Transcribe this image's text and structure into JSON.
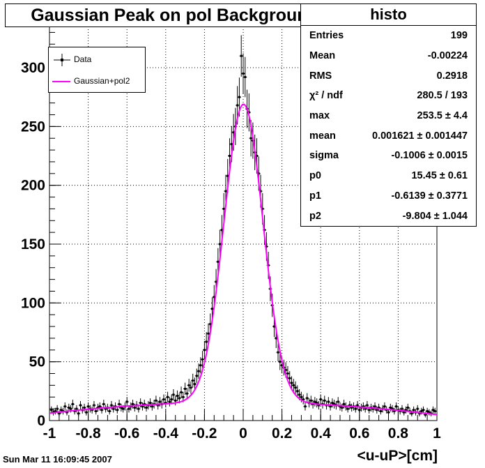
{
  "title": "Gaussian Peak on pol Background",
  "stats": {
    "name": "histo",
    "rows": [
      {
        "label": "Entries",
        "value": "199"
      },
      {
        "label": "Mean",
        "value": "-0.00224"
      },
      {
        "label": "RMS",
        "value": "0.2918"
      },
      {
        "label": "χ² / ndf",
        "value": "280.5 / 193"
      },
      {
        "label": "max",
        "value": "253.5 ± 4.4"
      },
      {
        "label": "mean",
        "value": "0.001621 ± 0.001447"
      },
      {
        "label": "sigma",
        "value": "-0.1006 ± 0.0015"
      },
      {
        "label": "p0",
        "value": "15.45 ± 0.61"
      },
      {
        "label": "p1",
        "value": "-0.6139 ± 0.3771"
      },
      {
        "label": "p2",
        "value": "-9.804 ± 1.044"
      }
    ]
  },
  "legend": {
    "entries": [
      {
        "label": "Data",
        "style": "markers"
      },
      {
        "label": "Gaussian+pol2",
        "style": "line"
      }
    ]
  },
  "timestamp": "Sun Mar 11 16:09:45 2007",
  "xlabel": "<u-uP>[cm]",
  "colors": {
    "fit": "#ff00ff",
    "data": "#000000",
    "grid": "#000000"
  },
  "chart_data": {
    "type": "scatter",
    "title": "Gaussian Peak on pol Background",
    "xlabel": "<u-uP>[cm]",
    "ylabel": "",
    "xlim": [
      -1,
      1
    ],
    "ylim": [
      0,
      335
    ],
    "grid": true,
    "legend_position": "top-left",
    "x_ticks": [
      "-1",
      "-0.8",
      "-0.6",
      "-0.4",
      "-0.2",
      "0",
      "0.2",
      "0.4",
      "0.6",
      "0.8",
      "1"
    ],
    "y_ticks": [
      "0",
      "50",
      "100",
      "150",
      "200",
      "250",
      "300"
    ],
    "fit_function": {
      "name": "Gaussian+pol2",
      "max": 253.5,
      "mean": 0.001621,
      "sigma": -0.1006,
      "p0": 15.45,
      "p1": -0.6139,
      "p2": -9.804
    },
    "series": [
      {
        "name": "Data",
        "points": [
          [
            -0.99,
            9
          ],
          [
            -0.98,
            7
          ],
          [
            -0.97,
            8
          ],
          [
            -0.96,
            10
          ],
          [
            -0.95,
            6
          ],
          [
            -0.94,
            9
          ],
          [
            -0.93,
            8
          ],
          [
            -0.92,
            12
          ],
          [
            -0.91,
            7
          ],
          [
            -0.9,
            11
          ],
          [
            -0.89,
            10
          ],
          [
            -0.88,
            14
          ],
          [
            -0.87,
            8
          ],
          [
            -0.86,
            10
          ],
          [
            -0.85,
            6
          ],
          [
            -0.84,
            13
          ],
          [
            -0.83,
            9
          ],
          [
            -0.82,
            11
          ],
          [
            -0.81,
            7
          ],
          [
            -0.8,
            12
          ],
          [
            -0.79,
            10
          ],
          [
            -0.78,
            9
          ],
          [
            -0.77,
            13
          ],
          [
            -0.76,
            8
          ],
          [
            -0.75,
            11
          ],
          [
            -0.74,
            12
          ],
          [
            -0.73,
            9
          ],
          [
            -0.72,
            14
          ],
          [
            -0.71,
            10
          ],
          [
            -0.7,
            11
          ],
          [
            -0.69,
            8
          ],
          [
            -0.68,
            13
          ],
          [
            -0.67,
            10
          ],
          [
            -0.66,
            12
          ],
          [
            -0.65,
            9
          ],
          [
            -0.64,
            14
          ],
          [
            -0.63,
            11
          ],
          [
            -0.62,
            10
          ],
          [
            -0.61,
            12
          ],
          [
            -0.6,
            16
          ],
          [
            -0.59,
            10
          ],
          [
            -0.58,
            12
          ],
          [
            -0.57,
            14
          ],
          [
            -0.56,
            11
          ],
          [
            -0.55,
            13
          ],
          [
            -0.54,
            10
          ],
          [
            -0.53,
            15
          ],
          [
            -0.52,
            12
          ],
          [
            -0.51,
            14
          ],
          [
            -0.5,
            11
          ],
          [
            -0.49,
            13
          ],
          [
            -0.48,
            15
          ],
          [
            -0.47,
            12
          ],
          [
            -0.46,
            14
          ],
          [
            -0.45,
            17
          ],
          [
            -0.44,
            13
          ],
          [
            -0.43,
            16
          ],
          [
            -0.42,
            14
          ],
          [
            -0.41,
            18
          ],
          [
            -0.4,
            15
          ],
          [
            -0.39,
            20
          ],
          [
            -0.38,
            16
          ],
          [
            -0.37,
            18
          ],
          [
            -0.36,
            22
          ],
          [
            -0.35,
            17
          ],
          [
            -0.34,
            21
          ],
          [
            -0.33,
            19
          ],
          [
            -0.32,
            24
          ],
          [
            -0.31,
            20
          ],
          [
            -0.3,
            27
          ],
          [
            -0.29,
            23
          ],
          [
            -0.28,
            30
          ],
          [
            -0.27,
            28
          ],
          [
            -0.26,
            34
          ],
          [
            -0.25,
            31
          ],
          [
            -0.24,
            38
          ],
          [
            -0.23,
            42
          ],
          [
            -0.22,
            47
          ],
          [
            -0.21,
            52
          ],
          [
            -0.2,
            60
          ],
          [
            -0.19,
            67
          ],
          [
            -0.18,
            74
          ],
          [
            -0.17,
            82
          ],
          [
            -0.16,
            95
          ],
          [
            -0.15,
            105
          ],
          [
            -0.14,
            118
          ],
          [
            -0.13,
            135
          ],
          [
            -0.12,
            150
          ],
          [
            -0.11,
            162
          ],
          [
            -0.1,
            180
          ],
          [
            -0.09,
            195
          ],
          [
            -0.08,
            208
          ],
          [
            -0.07,
            225
          ],
          [
            -0.06,
            235
          ],
          [
            -0.05,
            245
          ],
          [
            -0.04,
            250
          ],
          [
            -0.03,
            268
          ],
          [
            -0.02,
            275
          ],
          [
            -0.01,
            310
          ],
          [
            0.0,
            295
          ],
          [
            0.01,
            292
          ],
          [
            0.02,
            265
          ],
          [
            0.03,
            262
          ],
          [
            0.04,
            240
          ],
          [
            0.05,
            238
          ],
          [
            0.06,
            228
          ],
          [
            0.07,
            225
          ],
          [
            0.08,
            210
          ],
          [
            0.09,
            195
          ],
          [
            0.1,
            180
          ],
          [
            0.11,
            162
          ],
          [
            0.12,
            148
          ],
          [
            0.13,
            132
          ],
          [
            0.14,
            112
          ],
          [
            0.15,
            98
          ],
          [
            0.16,
            80
          ],
          [
            0.17,
            70
          ],
          [
            0.18,
            58
          ],
          [
            0.19,
            50
          ],
          [
            0.2,
            47
          ],
          [
            0.21,
            45
          ],
          [
            0.22,
            43
          ],
          [
            0.23,
            40
          ],
          [
            0.24,
            36
          ],
          [
            0.25,
            32
          ],
          [
            0.26,
            30
          ],
          [
            0.27,
            28
          ],
          [
            0.28,
            25
          ],
          [
            0.29,
            22
          ],
          [
            0.3,
            20
          ],
          [
            0.31,
            18
          ],
          [
            0.32,
            12
          ],
          [
            0.33,
            19
          ],
          [
            0.34,
            15
          ],
          [
            0.35,
            17
          ],
          [
            0.36,
            14
          ],
          [
            0.37,
            16
          ],
          [
            0.38,
            15
          ],
          [
            0.39,
            13
          ],
          [
            0.4,
            18
          ],
          [
            0.41,
            14
          ],
          [
            0.42,
            17
          ],
          [
            0.43,
            13
          ],
          [
            0.44,
            16
          ],
          [
            0.45,
            12
          ],
          [
            0.46,
            15
          ],
          [
            0.47,
            14
          ],
          [
            0.48,
            13
          ],
          [
            0.49,
            16
          ],
          [
            0.5,
            12
          ],
          [
            0.51,
            11
          ],
          [
            0.52,
            14
          ],
          [
            0.53,
            12
          ],
          [
            0.54,
            10
          ],
          [
            0.55,
            13
          ],
          [
            0.56,
            11
          ],
          [
            0.57,
            12
          ],
          [
            0.58,
            10
          ],
          [
            0.59,
            13
          ],
          [
            0.6,
            9
          ],
          [
            0.61,
            11
          ],
          [
            0.62,
            12
          ],
          [
            0.63,
            10
          ],
          [
            0.64,
            13
          ],
          [
            0.65,
            9
          ],
          [
            0.66,
            11
          ],
          [
            0.67,
            10
          ],
          [
            0.68,
            12
          ],
          [
            0.69,
            9
          ],
          [
            0.7,
            11
          ],
          [
            0.71,
            8
          ],
          [
            0.72,
            10
          ],
          [
            0.73,
            12
          ],
          [
            0.74,
            9
          ],
          [
            0.75,
            7
          ],
          [
            0.76,
            11
          ],
          [
            0.77,
            10
          ],
          [
            0.78,
            8
          ],
          [
            0.79,
            12
          ],
          [
            0.8,
            9
          ],
          [
            0.81,
            8
          ],
          [
            0.82,
            10
          ],
          [
            0.83,
            7
          ],
          [
            0.84,
            9
          ],
          [
            0.85,
            11
          ],
          [
            0.86,
            8
          ],
          [
            0.87,
            6
          ],
          [
            0.88,
            9
          ],
          [
            0.89,
            7
          ],
          [
            0.9,
            10
          ],
          [
            0.91,
            6
          ],
          [
            0.92,
            8
          ],
          [
            0.93,
            9
          ],
          [
            0.94,
            5
          ],
          [
            0.95,
            8
          ],
          [
            0.96,
            7
          ],
          [
            0.97,
            6
          ],
          [
            0.98,
            9
          ],
          [
            0.99,
            8
          ]
        ]
      }
    ]
  }
}
